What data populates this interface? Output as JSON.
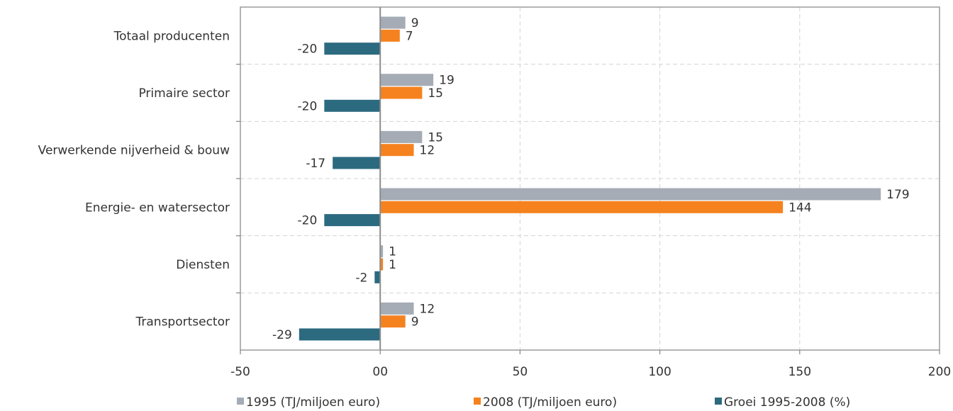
{
  "chart_data": {
    "type": "bar",
    "orientation": "horizontal",
    "categories": [
      "Totaal producenten",
      "Primaire sector",
      "Verwerkende nijverheid & bouw",
      "Energie- en watersector",
      "Diensten",
      "Transportsector"
    ],
    "series": [
      {
        "name": "1995 (TJ/miljoen euro)",
        "color": "#a5acb6",
        "values": [
          9,
          19,
          15,
          179,
          1,
          12
        ]
      },
      {
        "name": "2008 (TJ/miljoen euro)",
        "color": "#f5821f",
        "values": [
          7,
          15,
          12,
          144,
          1,
          9
        ]
      },
      {
        "name": "Groei 1995-2008 (%)",
        "color": "#2c6a80",
        "values": [
          -20,
          -20,
          -17,
          -20,
          -2,
          -29
        ]
      }
    ],
    "xlim": [
      -50,
      200
    ],
    "x_ticks": [
      "-50",
      "00",
      "50",
      "100",
      "150",
      "200"
    ],
    "grid": true,
    "legend_position": "bottom"
  }
}
